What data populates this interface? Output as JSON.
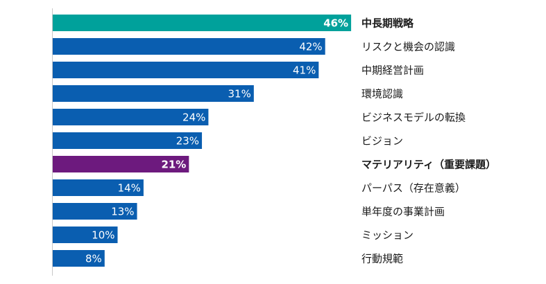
{
  "chart_data": {
    "type": "bar",
    "orientation": "horizontal",
    "categories": [
      "中長期戦略",
      "リスクと機会の認識",
      "中期経営計画",
      "環境認識",
      "ビジネスモデルの転換",
      "ビジョン",
      "マテリアリティ（重要課題）",
      "パーパス（存在意義）",
      "単年度の事業計画",
      "ミッション",
      "行動規範"
    ],
    "values": [
      46,
      42,
      41,
      31,
      24,
      23,
      21,
      14,
      13,
      10,
      8
    ],
    "value_labels": [
      "46%",
      "42%",
      "41%",
      "31%",
      "24%",
      "23%",
      "21%",
      "14%",
      "13%",
      "10%",
      "8%"
    ],
    "highlight": [
      {
        "index": 0,
        "color": "#00a19b",
        "bold": true
      },
      {
        "index": 6,
        "color": "#6d1a7e",
        "bold": true
      }
    ],
    "default_color": "#0a5eb0",
    "xlim": [
      0,
      100
    ],
    "unit": "%",
    "title": "",
    "xlabel": "",
    "ylabel": ""
  }
}
